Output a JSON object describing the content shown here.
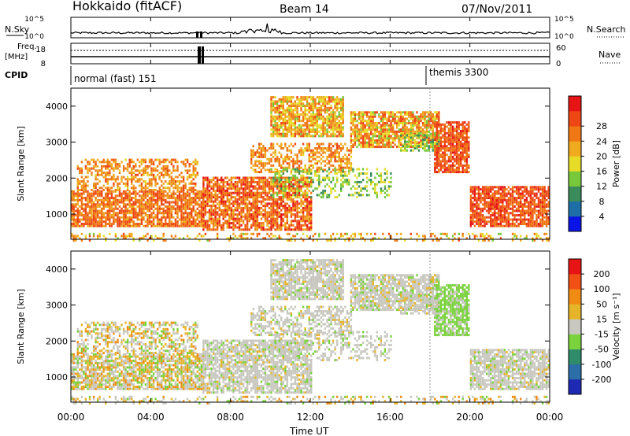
{
  "header": {
    "station": "Hokkaido (fitACF)",
    "beam": "Beam 14",
    "date": "07/Nov/2011"
  },
  "top_panels": {
    "nsky_label": "N.Sky",
    "nsearch_label": "N.Search",
    "noise_ticks": [
      "10^5",
      "10^0"
    ],
    "freq_label_1": "Freq.",
    "freq_label_2": "[MHz]",
    "freq_ticks": [
      "18",
      "8"
    ],
    "nave_label": "Nave",
    "nave_ticks": [
      "60",
      "0"
    ],
    "cpid_label": "CPID",
    "cpid_entries": [
      {
        "name": "normal (fast) 151",
        "start_hour": 0
      },
      {
        "name": "themis 3300",
        "start_hour": 18
      }
    ]
  },
  "chart_data": [
    {
      "type": "heatmap",
      "quantity": "Power",
      "xlabel": "Time UT",
      "ylabel": "Slant Range [km]",
      "xlim": [
        0,
        24
      ],
      "ylim": [
        300,
        4500
      ],
      "x_ticks": [
        "00:00",
        "04:00",
        "08:00",
        "12:00",
        "16:00",
        "20:00",
        "00:00"
      ],
      "y_ticks": [
        1000,
        2000,
        3000,
        4000
      ],
      "colorbar": {
        "label": "Power [dB]",
        "ticks": [
          "4",
          "8",
          "12",
          "16",
          "20",
          "24",
          "28"
        ],
        "colors": [
          "#0a14e6",
          "#1e6ea8",
          "#3a8c5a",
          "#78c83c",
          "#e6dc28",
          "#f0aa1e",
          "#f07814",
          "#ee4614",
          "#e61414"
        ]
      }
    },
    {
      "type": "heatmap",
      "quantity": "Velocity",
      "xlabel": "Time UT",
      "ylabel": "Slant Range [km]",
      "xlim": [
        0,
        24
      ],
      "ylim": [
        300,
        4500
      ],
      "x_ticks": [
        "00:00",
        "04:00",
        "08:00",
        "12:00",
        "16:00",
        "20:00",
        "00:00"
      ],
      "y_ticks": [
        1000,
        2000,
        3000,
        4000
      ],
      "colorbar": {
        "label": "Velocity [m s⁻¹]",
        "ticks": [
          "200",
          "100",
          "50",
          "15",
          "-15",
          "-50",
          "-100",
          "-200"
        ],
        "colors": [
          "#1e2ab4",
          "#2c6ea8",
          "#2e8c6a",
          "#7ad23c",
          "#c8c8c0",
          "#e6b428",
          "#f08c14",
          "#f05014",
          "#e61414"
        ]
      }
    }
  ]
}
